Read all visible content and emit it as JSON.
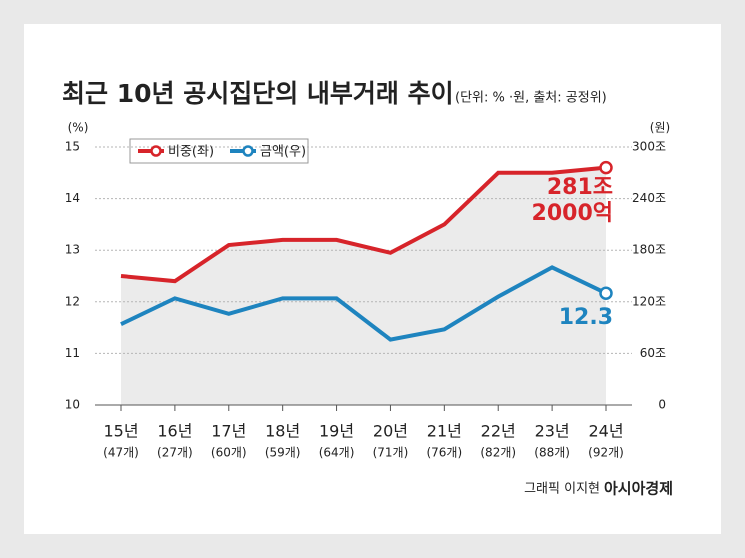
{
  "chart_data": {
    "type": "line",
    "title": "최근 10년 공시집단의 내부거래 추이",
    "subtitle": "(단위: % ·원, 출처: 공정위)",
    "y_unit": "(%)",
    "y2_unit": "(원)",
    "categories": [
      "15년",
      "16년",
      "17년",
      "18년",
      "19년",
      "20년",
      "21년",
      "22년",
      "23년",
      "24년"
    ],
    "category_sublabels": [
      "(47개)",
      "(27개)",
      "(60개)",
      "(59개)",
      "(64개)",
      "(71개)",
      "(76개)",
      "(82개)",
      "(88개)",
      "(92개)"
    ],
    "series": [
      {
        "name": "비중(좌)",
        "color": "#d7242a",
        "values": [
          12.5,
          12.4,
          13.1,
          13.2,
          13.2,
          12.95,
          13.5,
          14.5,
          14.5,
          14.6
        ]
      },
      {
        "name": "금액(우)",
        "color": "#1e84bf",
        "axis": "y2",
        "values": [
          94,
          124,
          106,
          124,
          124,
          76,
          88,
          126,
          160,
          130
        ]
      }
    ],
    "ylim": [
      10,
      15
    ],
    "yticks": [
      10,
      11,
      12,
      13,
      14,
      15
    ],
    "y2lim": [
      0,
      300
    ],
    "y2ticks": [
      0,
      {
        "value": 60,
        "label": "60조"
      },
      {
        "value": 120,
        "label": "120조"
      },
      {
        "value": 180,
        "label": "180조"
      },
      {
        "value": 240,
        "label": "240조"
      },
      {
        "value": 300,
        "label": "300조"
      }
    ],
    "grid": true,
    "area_under": "series.0",
    "annotations": [
      "281조",
      "2000억",
      "12.3"
    ],
    "credit": "그래픽 이지현",
    "source_brand": "아시아경제"
  }
}
